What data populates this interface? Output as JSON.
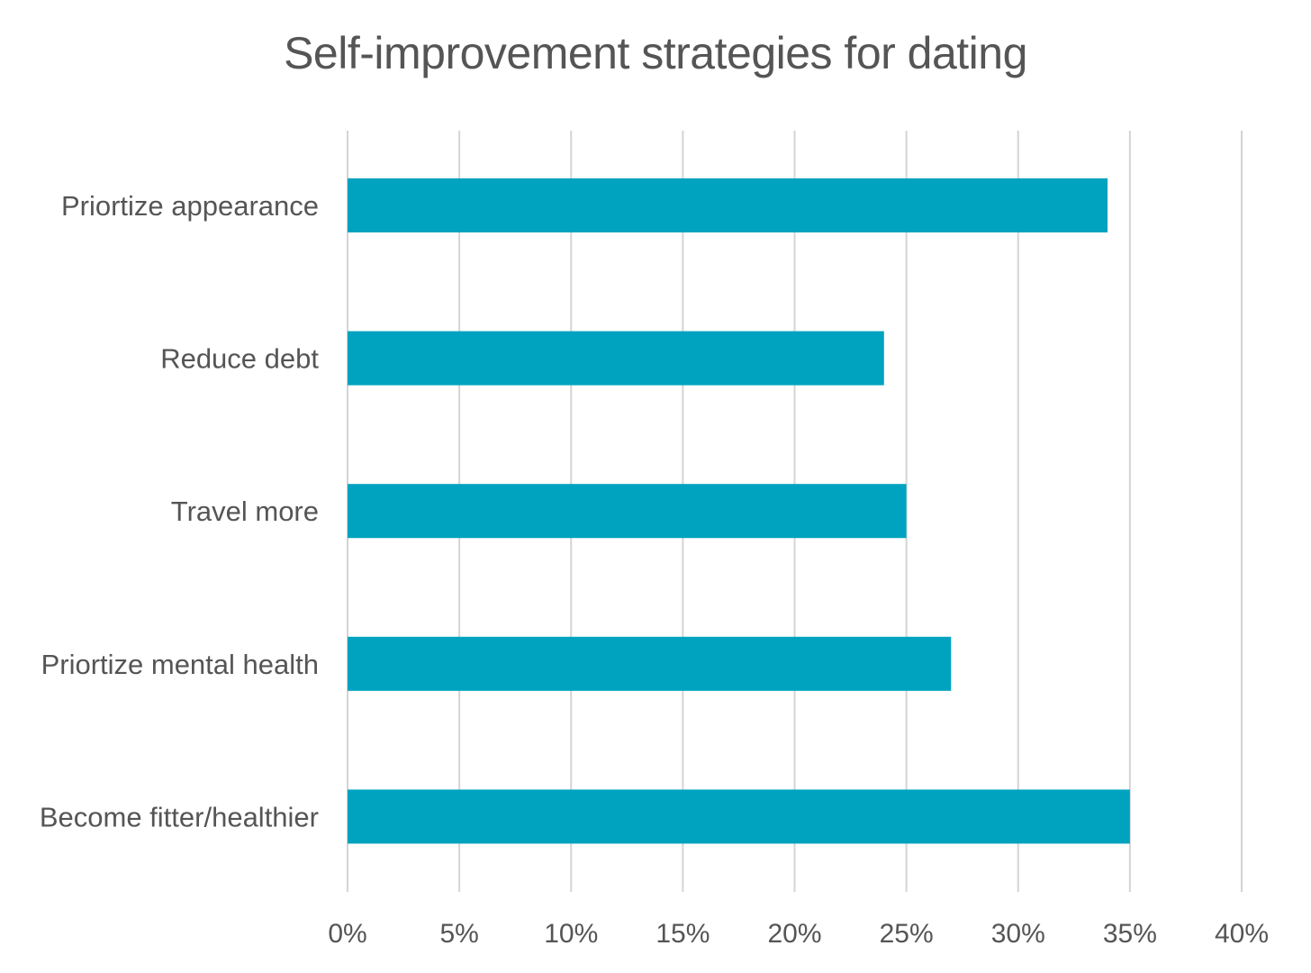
{
  "chart_data": {
    "type": "bar",
    "orientation": "horizontal",
    "title": "Self-improvement strategies for dating",
    "xlabel": "",
    "ylabel": "",
    "categories": [
      "Priortize appearance",
      "Reduce debt",
      "Travel more",
      "Priortize mental health",
      "Become fitter/healthier"
    ],
    "values": [
      34,
      24,
      25,
      27,
      35
    ],
    "xlim": [
      0,
      40
    ],
    "x_ticks": [
      "0%",
      "5%",
      "10%",
      "15%",
      "20%",
      "25%",
      "30%",
      "35%",
      "40%"
    ],
    "value_unit": "%",
    "grid": "vertical",
    "legend": "none",
    "bar_color": "#00A3BF",
    "grid_color": "#D4D4D4",
    "text_color": "#555555"
  }
}
